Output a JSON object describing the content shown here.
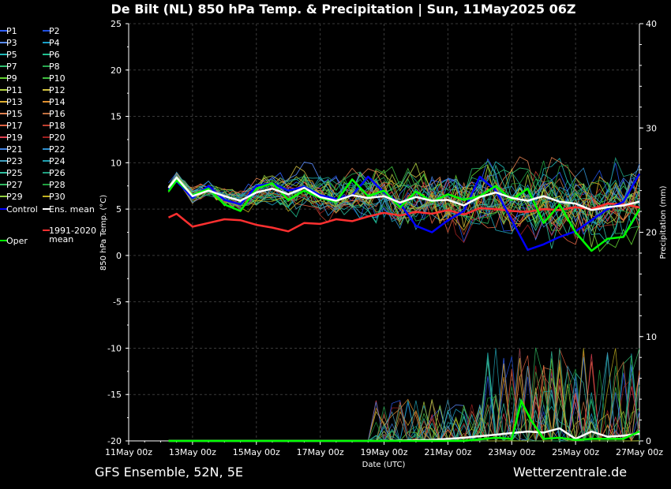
{
  "header": {
    "title": "De Bilt  (NL)  850 hPa Temp. & Precipitation | Sun, 11May2025 06Z"
  },
  "footer": {
    "source": "GFS Ensemble, 52N, 5E",
    "brand": "Wetterzentrale.de"
  },
  "legend": {
    "members": [
      {
        "label": "P1",
        "color": "#3060ff"
      },
      {
        "label": "P2",
        "color": "#2050e0"
      },
      {
        "label": "P3",
        "color": "#5a8cff"
      },
      {
        "label": "P4",
        "color": "#1aa0c8"
      },
      {
        "label": "P5",
        "color": "#20b8b8"
      },
      {
        "label": "P6",
        "color": "#20c090"
      },
      {
        "label": "P7",
        "color": "#30c070"
      },
      {
        "label": "P8",
        "color": "#28a850"
      },
      {
        "label": "P9",
        "color": "#60d030"
      },
      {
        "label": "P10",
        "color": "#40c040"
      },
      {
        "label": "P11",
        "color": "#b0d040"
      },
      {
        "label": "P12",
        "color": "#d0c040"
      },
      {
        "label": "P13",
        "color": "#e0b030"
      },
      {
        "label": "P14",
        "color": "#e09030"
      },
      {
        "label": "P15",
        "color": "#e08050"
      },
      {
        "label": "P16",
        "color": "#c07040"
      },
      {
        "label": "P17",
        "color": "#e06040"
      },
      {
        "label": "P18",
        "color": "#c04030"
      },
      {
        "label": "P19",
        "color": "#e04050"
      },
      {
        "label": "P20",
        "color": "#a02020"
      },
      {
        "label": "P21",
        "color": "#4080e0"
      },
      {
        "label": "P22",
        "color": "#3090d0"
      },
      {
        "label": "P23",
        "color": "#40a0c0"
      },
      {
        "label": "P24",
        "color": "#20a0b0"
      },
      {
        "label": "P25",
        "color": "#30c0a0"
      },
      {
        "label": "P26",
        "color": "#20a080"
      },
      {
        "label": "P27",
        "color": "#30b860"
      },
      {
        "label": "P28",
        "color": "#20a040"
      },
      {
        "label": "P29",
        "color": "#90d040"
      },
      {
        "label": "P30",
        "color": "#c0b020"
      }
    ],
    "control": {
      "label": "Control",
      "color": "#0000ff"
    },
    "ens_mean": {
      "label": "Ens. mean",
      "color": "#ffffff"
    },
    "climate": {
      "label": "1991-2020 mean",
      "color": "#ff3030"
    },
    "oper": {
      "label": "Oper",
      "color": "#00ff00"
    }
  },
  "chart_data": {
    "type": "line",
    "title": "De Bilt  (NL)  850 hPa Temp. & Precipitation | Sun, 11May2025 06Z",
    "xlabel": "Date (UTC)",
    "ylabel": "850 hPa Temp. (°C)",
    "y2label": "Precipitation (mm)",
    "ylim": [
      -20,
      25
    ],
    "y2lim": [
      0,
      40
    ],
    "y_ticks": [
      25,
      20,
      15,
      10,
      5,
      0,
      -5,
      -10,
      -15,
      -20
    ],
    "y2_ticks": [
      40,
      30,
      20,
      10,
      0
    ],
    "x_ticks": [
      "11May 00z",
      "13May 00z",
      "15May 00z",
      "17May 00z",
      "19May 00z",
      "21May 00z",
      "23May 00z",
      "25May 00z",
      "27May 00z"
    ],
    "x_range_days": [
      0,
      16
    ],
    "grid": true,
    "series": [
      {
        "name": "Ens. mean",
        "color": "#ffffff",
        "points": [
          [
            1.25,
            7.3
          ],
          [
            1.5,
            8.4
          ],
          [
            2,
            6.4
          ],
          [
            2.5,
            7.0
          ],
          [
            3,
            6.4
          ],
          [
            3.5,
            5.9
          ],
          [
            4,
            6.8
          ],
          [
            4.5,
            7.2
          ],
          [
            5,
            6.6
          ],
          [
            5.5,
            7.3
          ],
          [
            6,
            6.3
          ],
          [
            6.5,
            5.9
          ],
          [
            7,
            6.5
          ],
          [
            7.5,
            6.2
          ],
          [
            8,
            6.4
          ],
          [
            8.5,
            5.7
          ],
          [
            9,
            6.3
          ],
          [
            9.5,
            5.9
          ],
          [
            10,
            6.0
          ],
          [
            10.5,
            5.4
          ],
          [
            11,
            6.3
          ],
          [
            11.5,
            6.8
          ],
          [
            12,
            6.2
          ],
          [
            12.5,
            5.9
          ],
          [
            13,
            6.4
          ],
          [
            13.5,
            5.8
          ],
          [
            14,
            5.6
          ],
          [
            14.5,
            4.9
          ],
          [
            15,
            5.2
          ],
          [
            15.5,
            5.4
          ],
          [
            16,
            5.8
          ]
        ]
      },
      {
        "name": "1991-2020 mean",
        "color": "#ff3030",
        "points": [
          [
            1.25,
            4.1
          ],
          [
            1.5,
            4.5
          ],
          [
            2,
            3.1
          ],
          [
            2.5,
            3.5
          ],
          [
            3,
            3.9
          ],
          [
            3.5,
            3.8
          ],
          [
            4,
            3.3
          ],
          [
            4.5,
            3.0
          ],
          [
            5,
            2.6
          ],
          [
            5.5,
            3.5
          ],
          [
            6,
            3.4
          ],
          [
            6.5,
            3.9
          ],
          [
            7,
            3.7
          ],
          [
            7.5,
            4.2
          ],
          [
            8,
            4.6
          ],
          [
            8.5,
            4.3
          ],
          [
            9,
            4.7
          ],
          [
            9.5,
            4.5
          ],
          [
            10,
            4.9
          ],
          [
            10.5,
            4.4
          ],
          [
            11,
            5.1
          ],
          [
            11.5,
            5.0
          ],
          [
            12,
            4.8
          ],
          [
            12.5,
            4.7
          ],
          [
            13,
            5.0
          ],
          [
            13.5,
            4.9
          ],
          [
            14,
            5.2
          ],
          [
            14.5,
            5.0
          ],
          [
            15,
            5.6
          ],
          [
            15.5,
            5.5
          ],
          [
            16,
            5.2
          ]
        ]
      },
      {
        "name": "Control",
        "color": "#0000ff",
        "points": [
          [
            1.25,
            7.1
          ],
          [
            1.5,
            8.0
          ],
          [
            2,
            6.2
          ],
          [
            2.5,
            7.5
          ],
          [
            3,
            6.0
          ],
          [
            3.5,
            5.5
          ],
          [
            4,
            7.5
          ],
          [
            4.5,
            7.8
          ],
          [
            5,
            7.0
          ],
          [
            5.5,
            7.4
          ],
          [
            6,
            6.5
          ],
          [
            6.5,
            6.1
          ],
          [
            7,
            6.5
          ],
          [
            7.5,
            8.5
          ],
          [
            8,
            6.8
          ],
          [
            8.5,
            5.6
          ],
          [
            9,
            3.2
          ],
          [
            9.5,
            2.5
          ],
          [
            10,
            3.8
          ],
          [
            10.5,
            4.8
          ],
          [
            11,
            8.5
          ],
          [
            11.5,
            7.0
          ],
          [
            12,
            3.8
          ],
          [
            12.5,
            0.6
          ],
          [
            13,
            1.2
          ],
          [
            13.5,
            2.0
          ],
          [
            14,
            2.6
          ],
          [
            14.5,
            3.8
          ],
          [
            15,
            5.0
          ],
          [
            15.5,
            5.8
          ],
          [
            16,
            8.8
          ]
        ]
      },
      {
        "name": "Oper",
        "color": "#00ff00",
        "points": [
          [
            1.25,
            6.9
          ],
          [
            1.5,
            8.1
          ],
          [
            2,
            6.5
          ],
          [
            2.5,
            7.2
          ],
          [
            3,
            5.5
          ],
          [
            3.5,
            4.8
          ],
          [
            4,
            7.2
          ],
          [
            4.5,
            7.8
          ],
          [
            5,
            6.0
          ],
          [
            5.5,
            7.0
          ],
          [
            6,
            6.2
          ],
          [
            6.5,
            5.8
          ],
          [
            7,
            8.2
          ],
          [
            7.5,
            6.4
          ],
          [
            8,
            7.0
          ],
          [
            8.5,
            5.2
          ],
          [
            9,
            6.9
          ],
          [
            9.5,
            5.8
          ],
          [
            10,
            6.6
          ],
          [
            10.5,
            6.0
          ],
          [
            11,
            6.4
          ],
          [
            11.5,
            7.5
          ],
          [
            12,
            6.0
          ],
          [
            12.5,
            7.2
          ],
          [
            13,
            3.5
          ],
          [
            13.5,
            5.5
          ],
          [
            14,
            2.5
          ],
          [
            14.5,
            0.5
          ],
          [
            15,
            1.8
          ],
          [
            15.5,
            2.0
          ],
          [
            16,
            5.0
          ]
        ]
      }
    ],
    "precip_series": [
      {
        "name": "Ens. mean",
        "color": "#ffffff",
        "points": [
          [
            1.25,
            0
          ],
          [
            8,
            0
          ],
          [
            9.5,
            0.1
          ],
          [
            10.5,
            0.3
          ],
          [
            11.5,
            0.6
          ],
          [
            12.5,
            0.9
          ],
          [
            13,
            0.8
          ],
          [
            13.5,
            1.2
          ],
          [
            14,
            0.2
          ],
          [
            14.5,
            0.9
          ],
          [
            15,
            0.4
          ],
          [
            15.5,
            0.5
          ],
          [
            16,
            0.7
          ]
        ]
      },
      {
        "name": "Oper",
        "color": "#00ff00",
        "points": [
          [
            1.25,
            0
          ],
          [
            10.5,
            0
          ],
          [
            11.5,
            0.3
          ],
          [
            12,
            0.2
          ],
          [
            12.3,
            3.8
          ],
          [
            12.6,
            2.0
          ],
          [
            13,
            0.2
          ],
          [
            13.5,
            0.3
          ],
          [
            14,
            0.1
          ],
          [
            14.5,
            0.2
          ],
          [
            15,
            0.2
          ],
          [
            15.5,
            0.2
          ],
          [
            16,
            0.9
          ]
        ]
      }
    ]
  }
}
